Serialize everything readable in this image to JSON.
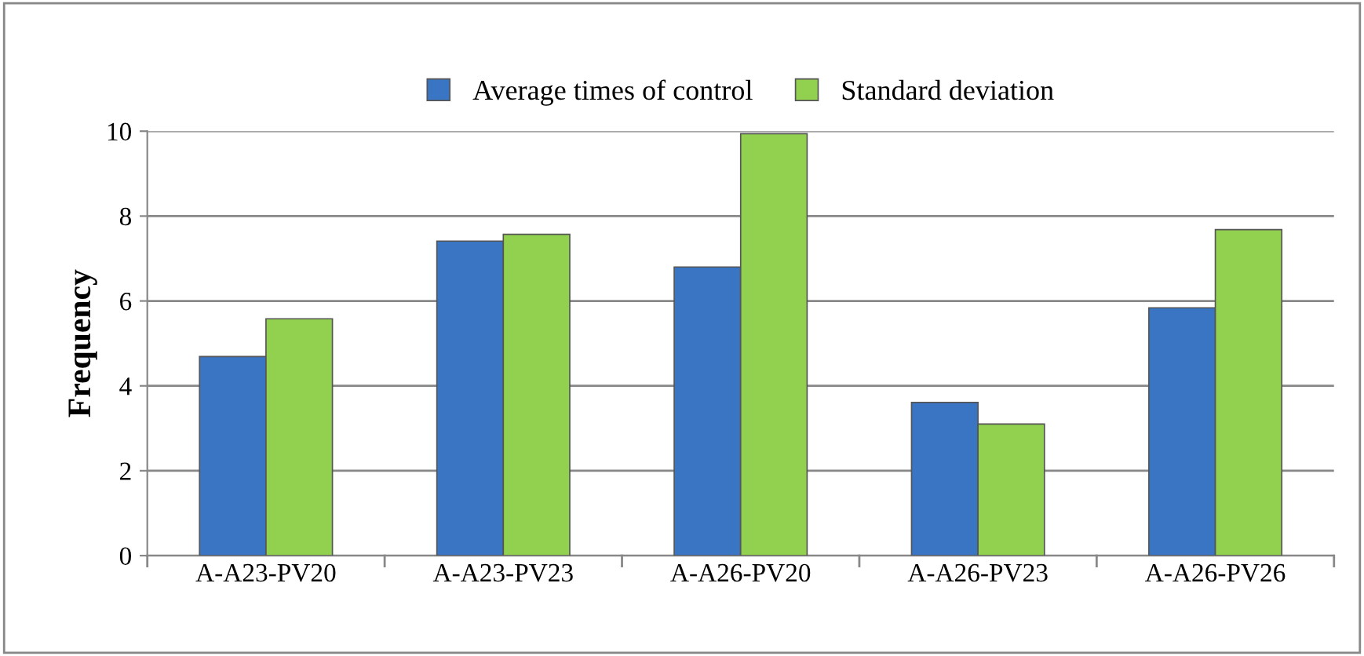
{
  "chart_data": {
    "type": "bar",
    "ylabel": "Frequency",
    "categories": [
      "A-A23-PV20",
      "A-A23-PV23",
      "A-A26-PV20",
      "A-A26-PV23",
      "A-A26-PV26"
    ],
    "series": [
      {
        "name": "Average times of control",
        "color": "#3a75c4",
        "values": [
          4.69,
          7.41,
          6.8,
          3.61,
          5.84
        ]
      },
      {
        "name": "Standard deviation",
        "color": "#92d050",
        "values": [
          5.58,
          7.57,
          9.94,
          3.1,
          7.68
        ]
      }
    ],
    "ylim": [
      0,
      10
    ],
    "yticks": [
      0,
      2,
      4,
      6,
      8,
      10
    ],
    "grid": "y",
    "legend": "top"
  }
}
